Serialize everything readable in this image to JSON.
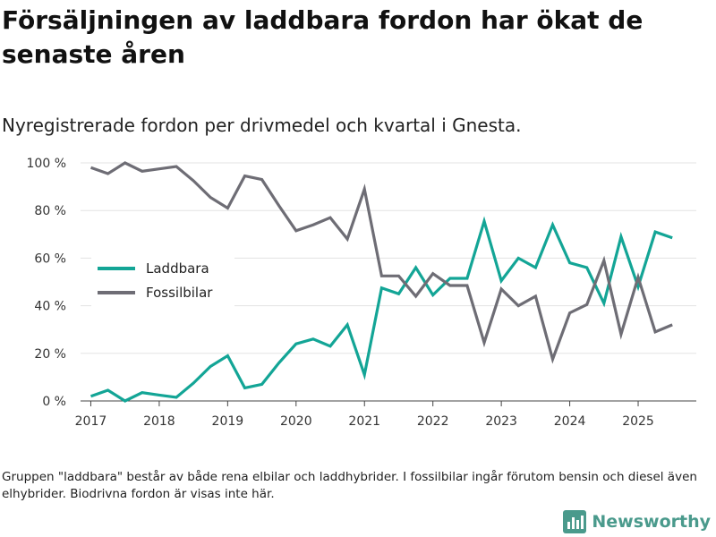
{
  "header": {
    "title": "Försäljningen av laddbara fordon har ökat de senaste åren",
    "subtitle": "Nyregistrerade fordon per drivmedel och kvartal i Gnesta."
  },
  "footnote": "Gruppen \"laddbara\" består av både rena elbilar och laddhybrider. I fossilbilar ingår förutom bensin och diesel även elhybrider. Biodrivna fordon är visas inte här.",
  "brand": {
    "name": "Newsworthy",
    "icon": "bar-chart-logo-icon",
    "color": "#4a9a8c"
  },
  "chart_data": {
    "type": "line",
    "title": "Försäljningen av laddbara fordon har ökat de senaste åren",
    "subtitle": "Nyregistrerade fordon per drivmedel och kvartal i Gnesta.",
    "xlabel": "",
    "ylabel": "",
    "grid": true,
    "legend_position": "middle-left",
    "ylim": [
      0,
      100
    ],
    "xlim": [
      2016.85,
      2025.85
    ],
    "y_ticks": [
      {
        "value": 0,
        "label": "0 %"
      },
      {
        "value": 20,
        "label": "20 %"
      },
      {
        "value": 40,
        "label": "40 %"
      },
      {
        "value": 60,
        "label": "60 %"
      },
      {
        "value": 80,
        "label": "80 %"
      },
      {
        "value": 100,
        "label": "100 %"
      }
    ],
    "x_ticks": [
      {
        "value": 2017,
        "label": "2017"
      },
      {
        "value": 2018,
        "label": "2018"
      },
      {
        "value": 2019,
        "label": "2019"
      },
      {
        "value": 2020,
        "label": "2020"
      },
      {
        "value": 2021,
        "label": "2021"
      },
      {
        "value": 2022,
        "label": "2022"
      },
      {
        "value": 2023,
        "label": "2023"
      },
      {
        "value": 2024,
        "label": "2024"
      },
      {
        "value": 2025,
        "label": "2025"
      }
    ],
    "x": [
      2017,
      2017.25,
      2017.5,
      2017.75,
      2018,
      2018.25,
      2018.5,
      2018.75,
      2019,
      2019.25,
      2019.5,
      2019.75,
      2020,
      2020.25,
      2020.5,
      2020.75,
      2021,
      2021.25,
      2021.5,
      2021.75,
      2022,
      2022.25,
      2022.5,
      2022.75,
      2023,
      2023.25,
      2023.5,
      2023.75,
      2024,
      2024.25,
      2024.5,
      2024.75,
      2025,
      2025.25,
      2025.5
    ],
    "series": [
      {
        "name": "Laddbara",
        "color": "#13a596",
        "values": [
          2,
          4.5,
          0,
          3.5,
          2.5,
          1.5,
          7.5,
          14.5,
          19,
          5.5,
          7,
          16,
          24,
          26,
          23,
          32,
          11,
          47.5,
          45,
          56,
          44.5,
          51.5,
          51.5,
          75.5,
          50.5,
          60,
          56,
          74,
          58,
          56,
          41,
          69,
          48,
          71,
          68.5
        ]
      },
      {
        "name": "Fossilbilar",
        "color": "#6e6d75",
        "values": [
          98,
          95.5,
          100,
          96.5,
          97.5,
          98.5,
          92.5,
          85.5,
          81,
          94.5,
          93,
          82,
          71.5,
          74,
          77,
          68,
          89,
          52.5,
          52.5,
          44,
          53.5,
          48.5,
          48.5,
          24.5,
          47,
          40,
          44,
          17.5,
          37,
          40.5,
          59,
          28,
          52,
          29,
          32
        ]
      }
    ]
  }
}
